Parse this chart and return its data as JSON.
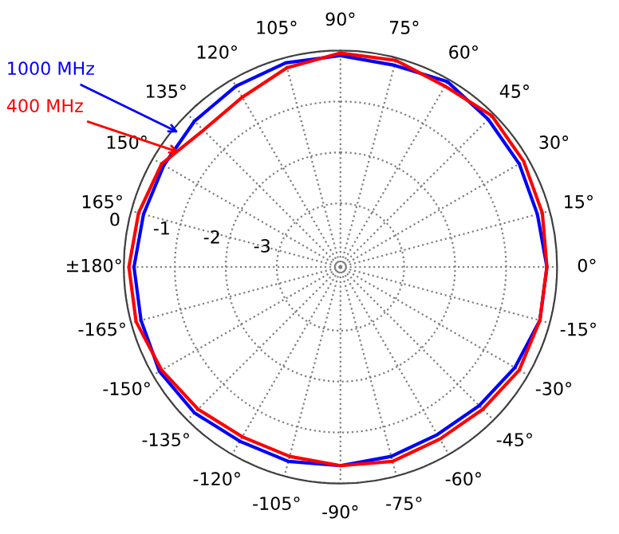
{
  "chart_data": {
    "type": "radar",
    "categories": [
      "90°",
      "75°",
      "60°",
      "45°",
      "30°",
      "15°",
      "0°",
      "-15°",
      "-30°",
      "-45°",
      "-60°",
      "-75°",
      "-90°",
      "-105°",
      "-120°",
      "-135°",
      "-150°",
      "-165°",
      "±180°",
      "165°",
      "150°",
      "135°",
      "120°",
      "105°"
    ],
    "series": [
      {
        "name": "1000 MHz",
        "color": "#0000ff",
        "values": [
          -0.1,
          -0.15,
          -0.05,
          -0.15,
          -0.2,
          -0.25,
          -0.2,
          -0.2,
          -0.3,
          -0.4,
          -0.45,
          -0.4,
          -0.35,
          -0.3,
          -0.3,
          -0.2,
          -0.15,
          -0.2,
          -0.2,
          -0.25,
          -0.25,
          -0.2,
          -0.15,
          -0.1
        ]
      },
      {
        "name": "400 MHz",
        "color": "#ff0000",
        "values": [
          -0.05,
          -0.05,
          -0.15,
          -0.05,
          -0.1,
          -0.15,
          -0.2,
          -0.2,
          -0.2,
          -0.3,
          -0.35,
          -0.3,
          -0.35,
          -0.4,
          -0.4,
          -0.3,
          -0.2,
          -0.1,
          -0.1,
          -0.15,
          -0.2,
          -0.45,
          -0.4,
          -0.2
        ]
      }
    ],
    "ylim": [
      -4.25,
      0
    ],
    "yticks": [
      -3,
      -2,
      -1,
      0
    ],
    "grid": true,
    "legend": false,
    "line_style": "solid",
    "marker": "none"
  }
}
